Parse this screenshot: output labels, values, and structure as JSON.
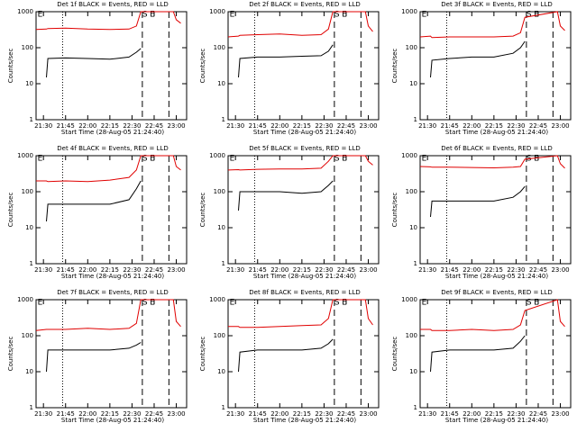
{
  "chart_data": [
    {
      "type": "line",
      "title": "Det 1f BLACK = Events, RED = LLD",
      "xlabel": "Start Time (28-Aug-05 21:24:40)",
      "ylabel": "Counts/sec",
      "log_y": true,
      "x": [
        "21:25",
        "21:32",
        "21:33",
        "21:45",
        "22:00",
        "22:15",
        "22:28",
        "22:33",
        "22:36",
        "22:58",
        "23:00",
        "23:03"
      ],
      "series": [
        {
          "color": "#000000",
          "values": [
            null,
            15,
            50,
            52,
            50,
            48,
            55,
            75,
            95,
            null,
            null,
            null
          ]
        },
        {
          "color": "#e00000",
          "values": [
            320,
            330,
            340,
            350,
            330,
            320,
            330,
            400,
            1000,
            1000,
            600,
            480
          ]
        }
      ],
      "xlim": [
        "21:25",
        "23:07"
      ],
      "xticks": [
        "21:30",
        "21:45",
        "22:00",
        "22:15",
        "22:30",
        "22:45",
        "23:00"
      ],
      "ylim": [
        1,
        1000
      ],
      "yticks": [
        1,
        10,
        100,
        1000
      ],
      "vlines": [
        {
          "x": "21:43",
          "style": "dotted"
        },
        {
          "x": "22:37",
          "style": "dashed"
        },
        {
          "x": "22:55",
          "style": "dashed"
        }
      ],
      "annotations": [
        {
          "text": "E",
          "x": "21:26"
        },
        {
          "text": "S",
          "x": "22:37"
        },
        {
          "text": "E",
          "x": "22:42"
        }
      ]
    },
    {
      "type": "line",
      "title": "Det 2f BLACK = Events, RED = LLD",
      "xlabel": "Start Time (28-Aug-05 21:24:40)",
      "ylabel": "Counts/sec",
      "log_y": true,
      "x": [
        "21:25",
        "21:32",
        "21:33",
        "21:45",
        "22:00",
        "22:15",
        "22:28",
        "22:33",
        "22:36",
        "22:58",
        "23:00",
        "23:03"
      ],
      "series": [
        {
          "color": "#000000",
          "values": [
            null,
            15,
            50,
            55,
            55,
            58,
            60,
            80,
            120,
            null,
            null,
            null
          ]
        },
        {
          "color": "#e00000",
          "values": [
            200,
            210,
            220,
            230,
            240,
            220,
            230,
            330,
            1000,
            1000,
            400,
            280
          ]
        }
      ],
      "xlim": [
        "21:25",
        "23:07"
      ],
      "xticks": [
        "21:30",
        "21:45",
        "22:00",
        "22:15",
        "22:30",
        "22:45",
        "23:00"
      ],
      "ylim": [
        1,
        1000
      ],
      "yticks": [
        1,
        10,
        100,
        1000
      ],
      "vlines": [
        {
          "x": "21:43",
          "style": "dotted"
        },
        {
          "x": "22:37",
          "style": "dashed"
        },
        {
          "x": "22:55",
          "style": "dashed"
        }
      ],
      "annotations": [
        {
          "text": "E",
          "x": "21:26"
        },
        {
          "text": "S",
          "x": "22:37"
        },
        {
          "text": "E",
          "x": "22:42"
        }
      ]
    },
    {
      "type": "line",
      "title": "Det 3f BLACK = Events, RED = LLD",
      "xlabel": "Start Time (28-Aug-05 21:24:40)",
      "ylabel": "Counts/sec",
      "log_y": true,
      "x": [
        "21:25",
        "21:32",
        "21:33",
        "21:45",
        "22:00",
        "22:15",
        "22:28",
        "22:33",
        "22:36",
        "22:58",
        "23:00",
        "23:03"
      ],
      "series": [
        {
          "color": "#000000",
          "values": [
            null,
            15,
            45,
            50,
            55,
            55,
            70,
            100,
            150,
            null,
            null,
            null
          ]
        },
        {
          "color": "#e00000",
          "values": [
            200,
            210,
            190,
            200,
            200,
            200,
            210,
            260,
            700,
            1000,
            400,
            300
          ]
        }
      ],
      "xlim": [
        "21:25",
        "23:07"
      ],
      "xticks": [
        "21:30",
        "21:45",
        "22:00",
        "22:15",
        "22:30",
        "22:45",
        "23:00"
      ],
      "ylim": [
        1,
        1000
      ],
      "yticks": [
        1,
        10,
        100,
        1000
      ],
      "vlines": [
        {
          "x": "21:43",
          "style": "dotted"
        },
        {
          "x": "22:37",
          "style": "dashed"
        },
        {
          "x": "22:55",
          "style": "dashed"
        }
      ],
      "annotations": [
        {
          "text": "E",
          "x": "21:26"
        },
        {
          "text": "S",
          "x": "22:37"
        },
        {
          "text": "E",
          "x": "22:42"
        }
      ]
    },
    {
      "type": "line",
      "title": "Det 4f BLACK = Events, RED = LLD",
      "xlabel": "Start Time (28-Aug-05 21:24:40)",
      "ylabel": "Counts/sec",
      "log_y": true,
      "x": [
        "21:25",
        "21:32",
        "21:33",
        "21:45",
        "22:00",
        "22:15",
        "22:28",
        "22:33",
        "22:36",
        "22:58",
        "23:00",
        "23:03"
      ],
      "series": [
        {
          "color": "#000000",
          "values": [
            null,
            15,
            45,
            45,
            45,
            45,
            60,
            120,
            200,
            null,
            null,
            null
          ]
        },
        {
          "color": "#e00000",
          "values": [
            200,
            200,
            190,
            200,
            190,
            210,
            250,
            400,
            1000,
            1000,
            500,
            400
          ]
        }
      ],
      "xlim": [
        "21:25",
        "23:07"
      ],
      "xticks": [
        "21:30",
        "21:45",
        "22:00",
        "22:15",
        "22:30",
        "22:45",
        "23:00"
      ],
      "ylim": [
        1,
        1000
      ],
      "yticks": [
        1,
        10,
        100,
        1000
      ],
      "vlines": [
        {
          "x": "21:43",
          "style": "dotted"
        },
        {
          "x": "22:37",
          "style": "dashed"
        },
        {
          "x": "22:55",
          "style": "dashed"
        }
      ],
      "annotations": [
        {
          "text": "E",
          "x": "21:26"
        },
        {
          "text": "S",
          "x": "22:37"
        },
        {
          "text": "E",
          "x": "22:42"
        }
      ]
    },
    {
      "type": "line",
      "title": "Det 5f BLACK = Events, RED = LLD",
      "xlabel": "Start Time (28-Aug-05 21:24:40)",
      "ylabel": "Counts/sec",
      "log_y": true,
      "x": [
        "21:25",
        "21:32",
        "21:33",
        "21:45",
        "22:00",
        "22:15",
        "22:28",
        "22:33",
        "22:36",
        "22:58",
        "23:00",
        "23:03"
      ],
      "series": [
        {
          "color": "#000000",
          "values": [
            null,
            30,
            100,
            100,
            100,
            90,
            100,
            150,
            200,
            null,
            null,
            null
          ]
        },
        {
          "color": "#e00000",
          "values": [
            400,
            410,
            400,
            420,
            430,
            430,
            450,
            700,
            1000,
            1000,
            700,
            550
          ]
        }
      ],
      "xlim": [
        "21:25",
        "23:07"
      ],
      "xticks": [
        "21:30",
        "21:45",
        "22:00",
        "22:15",
        "22:30",
        "22:45",
        "23:00"
      ],
      "ylim": [
        1,
        1000
      ],
      "yticks": [
        1,
        10,
        100,
        1000
      ],
      "vlines": [
        {
          "x": "21:43",
          "style": "dotted"
        },
        {
          "x": "22:37",
          "style": "dashed"
        },
        {
          "x": "22:55",
          "style": "dashed"
        }
      ],
      "annotations": [
        {
          "text": "E",
          "x": "21:26"
        },
        {
          "text": "S",
          "x": "22:37"
        },
        {
          "text": "E",
          "x": "22:42"
        }
      ]
    },
    {
      "type": "line",
      "title": "Det 6f BLACK = Events, RED = LLD",
      "xlabel": "Start Time (28-Aug-05 21:24:40)",
      "ylabel": "Counts/sec",
      "log_y": true,
      "x": [
        "21:25",
        "21:32",
        "21:33",
        "21:45",
        "22:00",
        "22:15",
        "22:28",
        "22:33",
        "22:36",
        "22:58",
        "23:00",
        "23:03"
      ],
      "series": [
        {
          "color": "#000000",
          "values": [
            null,
            20,
            55,
            55,
            55,
            55,
            70,
            100,
            140,
            null,
            null,
            null
          ]
        },
        {
          "color": "#e00000",
          "values": [
            500,
            490,
            480,
            480,
            470,
            460,
            480,
            500,
            800,
            1000,
            600,
            450
          ]
        }
      ],
      "xlim": [
        "21:25",
        "23:07"
      ],
      "xticks": [
        "21:30",
        "21:45",
        "22:00",
        "22:15",
        "22:30",
        "22:45",
        "23:00"
      ],
      "ylim": [
        1,
        1000
      ],
      "yticks": [
        1,
        10,
        100,
        1000
      ],
      "vlines": [
        {
          "x": "21:43",
          "style": "dotted"
        },
        {
          "x": "22:37",
          "style": "dashed"
        },
        {
          "x": "22:55",
          "style": "dashed"
        }
      ],
      "annotations": [
        {
          "text": "E",
          "x": "21:26"
        },
        {
          "text": "S",
          "x": "22:37"
        },
        {
          "text": "E",
          "x": "22:42"
        }
      ]
    },
    {
      "type": "line",
      "title": "Det 7f BLACK = Events, RED = LLD",
      "xlabel": "Start Time (28-Aug-05 21:24:40)",
      "ylabel": "Counts/sec",
      "log_y": true,
      "x": [
        "21:25",
        "21:32",
        "21:33",
        "21:45",
        "22:00",
        "22:15",
        "22:28",
        "22:33",
        "22:36",
        "22:58",
        "23:00",
        "23:03"
      ],
      "series": [
        {
          "color": "#000000",
          "values": [
            null,
            10,
            40,
            40,
            40,
            40,
            45,
            55,
            65,
            null,
            null,
            null
          ]
        },
        {
          "color": "#e00000",
          "values": [
            140,
            150,
            150,
            150,
            160,
            150,
            160,
            220,
            1000,
            1000,
            250,
            180
          ]
        }
      ],
      "xlim": [
        "21:25",
        "23:07"
      ],
      "xticks": [
        "21:30",
        "21:45",
        "22:00",
        "22:15",
        "22:30",
        "22:45",
        "23:00"
      ],
      "ylim": [
        1,
        1000
      ],
      "yticks": [
        1,
        10,
        100,
        1000
      ],
      "vlines": [
        {
          "x": "21:43",
          "style": "dotted"
        },
        {
          "x": "22:37",
          "style": "dashed"
        },
        {
          "x": "22:55",
          "style": "dashed"
        }
      ],
      "annotations": [
        {
          "text": "E",
          "x": "21:26"
        },
        {
          "text": "S",
          "x": "22:37"
        },
        {
          "text": "E",
          "x": "22:42"
        }
      ]
    },
    {
      "type": "line",
      "title": "Det 8f BLACK = Events, RED = LLD",
      "xlabel": "Start Time (28-Aug-05 21:24:40)",
      "ylabel": "Counts/sec",
      "log_y": true,
      "x": [
        "21:25",
        "21:32",
        "21:33",
        "21:45",
        "22:00",
        "22:15",
        "22:28",
        "22:33",
        "22:36",
        "22:58",
        "23:00",
        "23:03"
      ],
      "series": [
        {
          "color": "#000000",
          "values": [
            null,
            10,
            35,
            40,
            40,
            40,
            45,
            60,
            80,
            null,
            null,
            null
          ]
        },
        {
          "color": "#e00000",
          "values": [
            180,
            180,
            170,
            170,
            180,
            190,
            200,
            300,
            1000,
            1000,
            300,
            200
          ]
        }
      ],
      "xlim": [
        "21:25",
        "23:07"
      ],
      "xticks": [
        "21:30",
        "21:45",
        "22:00",
        "22:15",
        "22:30",
        "22:45",
        "23:00"
      ],
      "ylim": [
        1,
        1000
      ],
      "yticks": [
        1,
        10,
        100,
        1000
      ],
      "vlines": [
        {
          "x": "21:43",
          "style": "dotted"
        },
        {
          "x": "22:37",
          "style": "dashed"
        },
        {
          "x": "22:55",
          "style": "dashed"
        }
      ],
      "annotations": [
        {
          "text": "E",
          "x": "21:26"
        },
        {
          "text": "S",
          "x": "22:37"
        },
        {
          "text": "E",
          "x": "22:42"
        }
      ]
    },
    {
      "type": "line",
      "title": "Det 9f BLACK = Events, RED = LLD",
      "xlabel": "Start Time (28-Aug-05 21:24:40)",
      "ylabel": "Counts/sec",
      "log_y": true,
      "x": [
        "21:25",
        "21:32",
        "21:33",
        "21:45",
        "22:00",
        "22:15",
        "22:28",
        "22:33",
        "22:36",
        "22:58",
        "23:00",
        "23:03"
      ],
      "series": [
        {
          "color": "#000000",
          "values": [
            null,
            10,
            35,
            40,
            40,
            40,
            45,
            70,
            100,
            null,
            null,
            null
          ]
        },
        {
          "color": "#e00000",
          "values": [
            150,
            150,
            140,
            140,
            150,
            140,
            150,
            200,
            500,
            1000,
            250,
            180
          ]
        }
      ],
      "xlim": [
        "21:25",
        "23:07"
      ],
      "xticks": [
        "21:30",
        "21:45",
        "22:00",
        "22:15",
        "22:30",
        "22:45",
        "23:00"
      ],
      "ylim": [
        1,
        1000
      ],
      "yticks": [
        1,
        10,
        100,
        1000
      ],
      "vlines": [
        {
          "x": "21:43",
          "style": "dotted"
        },
        {
          "x": "22:37",
          "style": "dashed"
        },
        {
          "x": "22:55",
          "style": "dashed"
        }
      ],
      "annotations": [
        {
          "text": "E",
          "x": "21:26"
        },
        {
          "text": "S",
          "x": "22:37"
        },
        {
          "text": "E",
          "x": "22:42"
        }
      ]
    }
  ]
}
